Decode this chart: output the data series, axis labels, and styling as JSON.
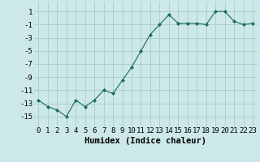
{
  "x": [
    0,
    1,
    2,
    3,
    4,
    5,
    6,
    7,
    8,
    9,
    10,
    11,
    12,
    13,
    14,
    15,
    16,
    17,
    18,
    19,
    20,
    21,
    22,
    23
  ],
  "y": [
    -12.5,
    -13.5,
    -14.0,
    -15.0,
    -12.5,
    -13.5,
    -12.5,
    -11.0,
    -11.5,
    -9.5,
    -7.5,
    -5.0,
    -2.5,
    -1.0,
    0.5,
    -0.8,
    -0.8,
    -0.8,
    -1.0,
    1.0,
    1.0,
    -0.5,
    -1.0,
    -0.8
  ],
  "line_color": "#1a6b5a",
  "marker": "D",
  "marker_size": 2.0,
  "bg_color": "#cde8e8",
  "grid_color": "#aacccc",
  "xlabel": "Humidex (Indice chaleur)",
  "xlabel_fontsize": 7.5,
  "tick_fontsize": 6.5,
  "yticks": [
    1,
    -1,
    -3,
    -5,
    -7,
    -9,
    -11,
    -13,
    -15
  ],
  "xticks": [
    0,
    1,
    2,
    3,
    4,
    5,
    6,
    7,
    8,
    9,
    10,
    11,
    12,
    13,
    14,
    15,
    16,
    17,
    18,
    19,
    20,
    21,
    22,
    23
  ],
  "xlim": [
    -0.5,
    23.5
  ],
  "ylim": [
    -16.5,
    2.5
  ]
}
